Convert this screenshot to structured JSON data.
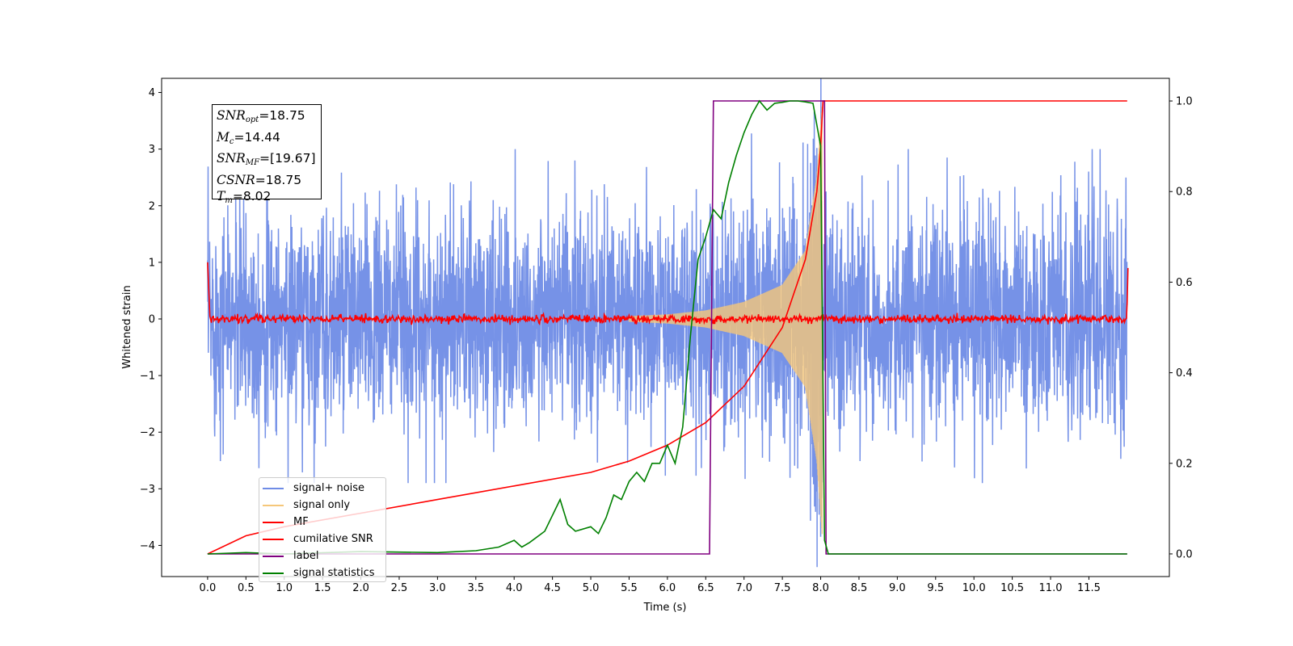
{
  "chart_data": {
    "type": "line",
    "xlabel": "Time (s)",
    "ylabel": "Whitened strain",
    "xlim": [
      -0.6,
      12.55
    ],
    "ylim": [
      -4.55,
      4.25
    ],
    "ylim_right": [
      -0.05,
      1.05
    ],
    "grid": false,
    "legend_placement": "lower-left",
    "xticks": [
      0.0,
      0.5,
      1.0,
      1.5,
      2.0,
      2.5,
      3.0,
      3.5,
      4.0,
      4.5,
      5.0,
      5.5,
      6.0,
      6.5,
      7.0,
      7.5,
      8.0,
      8.5,
      9.0,
      9.5,
      10.0,
      10.5,
      11.0,
      11.5
    ],
    "xtick_labels": [
      "0.0",
      "0.5",
      "1.0",
      "1.5",
      "2.0",
      "2.5",
      "3.0",
      "3.5",
      "4.0",
      "4.5",
      "5.0",
      "5.5",
      "6.0",
      "6.5",
      "7.0",
      "7.5",
      "8.0",
      "8.5",
      "9.0",
      "9.5",
      "10.0",
      "10.5",
      "11.0",
      "11.5"
    ],
    "yticks_left": [
      4,
      3,
      2,
      1,
      0,
      -1,
      -2,
      -3,
      -4
    ],
    "ytick_labels_left": [
      "4",
      "3",
      "2",
      "1",
      "0",
      "−1",
      "−2",
      "−3",
      "−4"
    ],
    "yticks_right": [
      1.0,
      0.8,
      0.6,
      0.4,
      0.2,
      0.0
    ],
    "ytick_labels_right": [
      "1.0",
      "0.8",
      "0.6",
      "0.4",
      "0.2",
      "0.0"
    ],
    "series": [
      {
        "name": "signal+ noise",
        "axis": "left",
        "color": "#6f8ce6",
        "description": "noise envelope",
        "x": [
          0,
          12
        ],
        "band": [
          -2.9,
          3.0
        ]
      },
      {
        "name": "signal only",
        "axis": "left",
        "color": "#f5c77a",
        "x": [
          5.5,
          6.0,
          6.5,
          7.0,
          7.5,
          7.8,
          7.95,
          8.02
        ],
        "amplitude": [
          0.05,
          0.08,
          0.15,
          0.3,
          0.6,
          1.2,
          2.5,
          3.8
        ]
      },
      {
        "name": "MF",
        "axis": "left",
        "color": "#ff0000",
        "x": [
          0,
          0.05,
          12,
          12.01
        ],
        "values": [
          1.0,
          0.0,
          0.0,
          0.9
        ]
      },
      {
        "name": "cumilative SNR",
        "axis": "right",
        "color": "#ff0000",
        "x": [
          0,
          0.5,
          1,
          2,
          3,
          4,
          5,
          5.5,
          6,
          6.5,
          7,
          7.5,
          7.8,
          7.95,
          8.0,
          8.03,
          8.05,
          12
        ],
        "values": [
          0.0,
          0.04,
          0.06,
          0.09,
          0.12,
          0.15,
          0.18,
          0.205,
          0.24,
          0.29,
          0.37,
          0.5,
          0.65,
          0.8,
          0.9,
          1.0,
          1.0,
          1.0
        ]
      },
      {
        "name": "label",
        "axis": "right",
        "color": "#800080",
        "x": [
          0,
          6.55,
          6.6,
          8.05,
          8.07,
          12
        ],
        "values": [
          0,
          0,
          1,
          1,
          0,
          0
        ]
      },
      {
        "name": "signal statistics",
        "axis": "right",
        "color": "#008000",
        "x": [
          0,
          0.5,
          1,
          2,
          3,
          3.5,
          3.8,
          4.0,
          4.1,
          4.2,
          4.4,
          4.6,
          4.7,
          4.8,
          5.0,
          5.1,
          5.2,
          5.3,
          5.4,
          5.5,
          5.6,
          5.7,
          5.8,
          5.9,
          6.0,
          6.1,
          6.2,
          6.3,
          6.4,
          6.5,
          6.6,
          6.7,
          6.8,
          6.9,
          7.0,
          7.1,
          7.2,
          7.3,
          7.4,
          7.5,
          7.6,
          7.7,
          7.8,
          7.9,
          8.0,
          8.05,
          8.1,
          8.2,
          12
        ],
        "values": [
          0.0,
          0.003,
          0.0,
          0.005,
          0.003,
          0.007,
          0.015,
          0.03,
          0.015,
          0.025,
          0.05,
          0.12,
          0.065,
          0.05,
          0.06,
          0.045,
          0.08,
          0.13,
          0.12,
          0.16,
          0.18,
          0.16,
          0.2,
          0.2,
          0.24,
          0.2,
          0.28,
          0.48,
          0.65,
          0.7,
          0.76,
          0.74,
          0.82,
          0.88,
          0.93,
          0.97,
          1.0,
          0.98,
          0.995,
          0.997,
          1.0,
          1.0,
          0.998,
          0.995,
          0.9,
          0.03,
          0.0,
          0.0,
          0.0
        ]
      }
    ],
    "annotation": [
      {
        "var": "SNR",
        "sub": "opt",
        "value": "=18.75"
      },
      {
        "var": "M",
        "sub": "c",
        "value": "=14.44"
      },
      {
        "var": "SNR",
        "sub": "MF",
        "value": "=[19.67]"
      },
      {
        "var": "CSNR",
        "sub": "",
        "value": "=18.75"
      },
      {
        "var": "T",
        "sub": "m",
        "value": "=8.02"
      }
    ]
  }
}
